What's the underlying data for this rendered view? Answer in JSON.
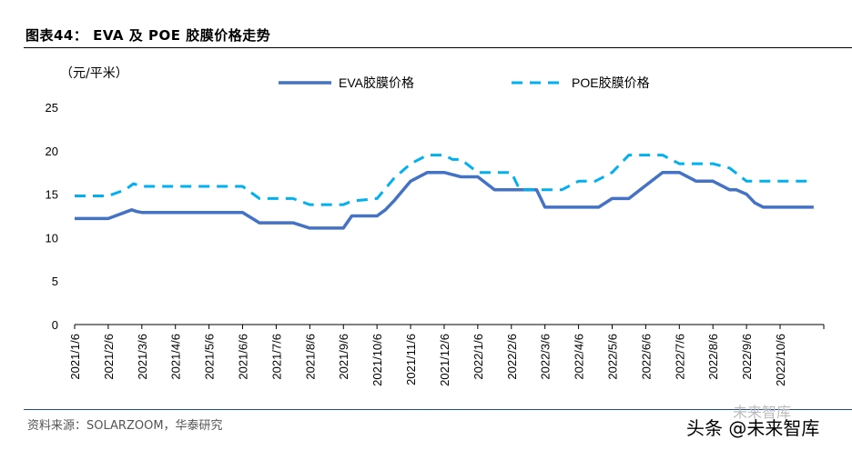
{
  "figure": {
    "title": "图表44： EVA 及 POE 胶膜价格走势",
    "source": "资料来源：SOLARZOOM，华泰研究",
    "watermark_small": "未来智库",
    "watermark_big": "头条 @未来智库"
  },
  "chart_data": {
    "type": "line",
    "unit_label": "（元/平米）",
    "ylim": [
      0,
      25
    ],
    "yticks": [
      0,
      5,
      10,
      15,
      20,
      25
    ],
    "xlim": [
      0,
      22.3
    ],
    "xtick_labels": [
      "2021/1/6",
      "2021/2/6",
      "2021/3/6",
      "2021/4/6",
      "2021/5/6",
      "2021/6/6",
      "2021/7/6",
      "2021/8/6",
      "2021/9/6",
      "2021/10/6",
      "2021/11/6",
      "2021/12/6",
      "2022/1/6",
      "2022/2/6",
      "2022/3/6",
      "2022/4/6",
      "2022/5/6",
      "2022/6/6",
      "2022/7/6",
      "2022/8/6",
      "2022/9/6",
      "2022/10/6"
    ],
    "legend_position": "top",
    "series": [
      {
        "name": "EVA胶膜价格",
        "color": "#4472c4",
        "style": "solid",
        "x": [
          0,
          1,
          1.7,
          1.85,
          2,
          3,
          4,
          4.5,
          5,
          5.5,
          6,
          6.5,
          7,
          7.5,
          8,
          8.25,
          9,
          9.25,
          9.5,
          10,
          10.5,
          11,
          11.5,
          12,
          12.5,
          13,
          13.75,
          14,
          15,
          15.6,
          16,
          16.25,
          16.5,
          17,
          17.5,
          18,
          18.5,
          19,
          19.5,
          19.7,
          20,
          20.25,
          20.5,
          22
        ],
        "y": [
          12.2,
          12.2,
          13.2,
          13.0,
          12.9,
          12.9,
          12.9,
          12.9,
          12.9,
          11.7,
          11.7,
          11.7,
          11.1,
          11.1,
          11.1,
          12.5,
          12.5,
          13.2,
          14.2,
          16.5,
          17.5,
          17.5,
          17.0,
          17.0,
          15.5,
          15.5,
          15.5,
          13.5,
          13.5,
          13.5,
          14.5,
          14.5,
          14.5,
          16.0,
          17.5,
          17.5,
          16.5,
          16.5,
          15.5,
          15.5,
          15.0,
          14.0,
          13.5,
          13.5
        ]
      },
      {
        "name": "POE胶膜价格",
        "color": "#00b0f0",
        "style": "dashed",
        "x": [
          0,
          1,
          1.5,
          1.75,
          2,
          3,
          4,
          4.5,
          5,
          5.5,
          6,
          6.5,
          7,
          7.5,
          8,
          8.25,
          9,
          9.5,
          10,
          10.5,
          11,
          11.25,
          11.5,
          12,
          12.25,
          13,
          13.25,
          13.5,
          14,
          14.5,
          15,
          15.5,
          16,
          16.5,
          17,
          17.5,
          18,
          18.25,
          18.5,
          19,
          19.5,
          20,
          20.5,
          22
        ],
        "y": [
          14.8,
          14.8,
          15.5,
          16.2,
          15.9,
          15.9,
          15.9,
          15.9,
          15.9,
          14.5,
          14.5,
          14.5,
          13.8,
          13.8,
          13.8,
          14.2,
          14.5,
          16.8,
          18.5,
          19.5,
          19.5,
          19.0,
          19.0,
          17.5,
          17.5,
          17.5,
          15.5,
          15.5,
          15.5,
          15.5,
          16.5,
          16.5,
          17.5,
          19.5,
          19.5,
          19.5,
          18.5,
          18.5,
          18.5,
          18.5,
          18.0,
          16.5,
          16.5,
          16.5
        ]
      }
    ]
  }
}
